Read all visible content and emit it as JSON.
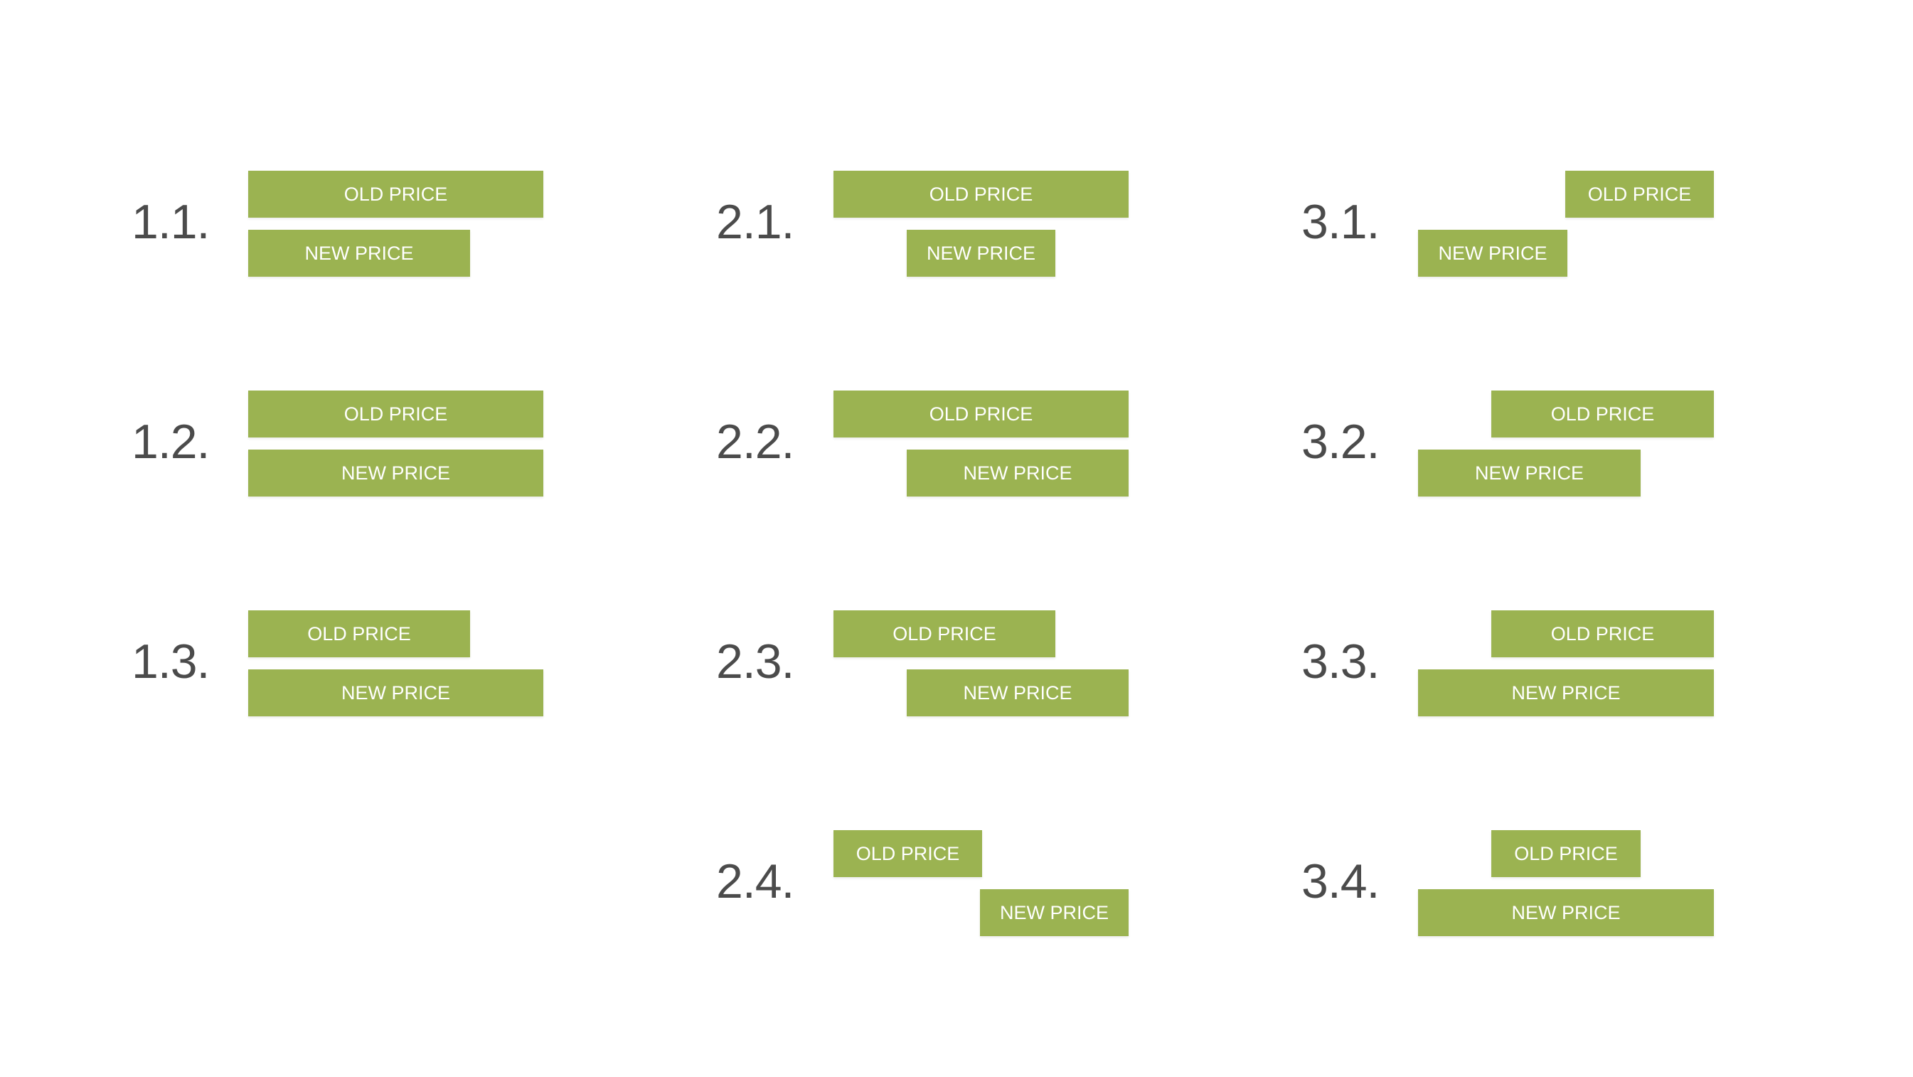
{
  "colors": {
    "bar": "#9bb351",
    "bar_text": "#ffffff",
    "label_text": "#4b4b4b",
    "background": "#ffffff"
  },
  "variants": [
    {
      "label": "1.1.",
      "old_label": "OLD PRICE",
      "new_label": "NEW PRICE"
    },
    {
      "label": "1.2.",
      "old_label": "OLD PRICE",
      "new_label": "NEW PRICE"
    },
    {
      "label": "1.3.",
      "old_label": "OLD PRICE",
      "new_label": "NEW PRICE"
    },
    {
      "label": "2.1.",
      "old_label": "OLD PRICE",
      "new_label": "NEW PRICE"
    },
    {
      "label": "2.2.",
      "old_label": "OLD PRICE",
      "new_label": "NEW PRICE"
    },
    {
      "label": "2.3.",
      "old_label": "OLD PRICE",
      "new_label": "NEW PRICE"
    },
    {
      "label": "2.4.",
      "old_label": "OLD PRICE",
      "new_label": "NEW PRICE"
    },
    {
      "label": "3.1.",
      "old_label": "OLD PRICE",
      "new_label": "NEW PRICE"
    },
    {
      "label": "3.2.",
      "old_label": "OLD PRICE",
      "new_label": "NEW PRICE"
    },
    {
      "label": "3.3.",
      "old_label": "OLD PRICE",
      "new_label": "NEW PRICE"
    },
    {
      "label": "3.4.",
      "old_label": "OLD PRICE",
      "new_label": "NEW PRICE"
    }
  ]
}
